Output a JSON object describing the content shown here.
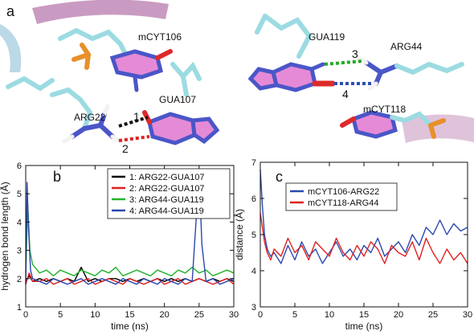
{
  "panel_labels": {
    "a": "a",
    "b": "b",
    "c": "c"
  },
  "structures": {
    "left": {
      "labels": {
        "mcyt106": "mCYT106",
        "gua107": "GUA107",
        "arg22": "ARG22"
      },
      "bonds": [
        {
          "num": "1",
          "color": "#111111"
        },
        {
          "num": "2",
          "color": "#dd2222"
        }
      ]
    },
    "right": {
      "labels": {
        "gua119": "GUA119",
        "arg44": "ARG44",
        "mcyt118": "mCYT118"
      },
      "bonds": [
        {
          "num": "3",
          "color": "#22aa22"
        },
        {
          "num": "4",
          "color": "#2a4fb0"
        }
      ]
    },
    "colors": {
      "carbon": "#8fd4dc",
      "nitrogen": "#4a56c8",
      "oxygen": "#dd2a2a",
      "hydrogen": "#f2f2f2",
      "phosphorus": "#e8902a",
      "ring": "#e58ad6",
      "backbone": "#b06aa8"
    }
  },
  "chart_data": [
    {
      "type": "line",
      "panel": "b",
      "xlabel": "time (ns)",
      "ylabel": "hydrogen bond length (Å)",
      "xlim": [
        0,
        30
      ],
      "ylim": [
        1,
        6
      ],
      "xticks": [
        0,
        5,
        10,
        15,
        20,
        25,
        30
      ],
      "yticks": [
        1,
        2,
        3,
        4,
        5,
        6
      ],
      "legend_position": "top-right",
      "series": [
        {
          "name": "1: ARG22-GUA107",
          "color": "#000000",
          "x": [
            0,
            0.5,
            1,
            2,
            3,
            4,
            5,
            6,
            7,
            8,
            9,
            10,
            11,
            12,
            13,
            14,
            15,
            16,
            17,
            18,
            19,
            20,
            21,
            22,
            23,
            24,
            25,
            26,
            27,
            28,
            29,
            30
          ],
          "y": [
            1.9,
            2.1,
            1.9,
            2.0,
            1.9,
            2.0,
            1.9,
            2.0,
            1.9,
            2.4,
            1.9,
            2.0,
            1.9,
            2.0,
            2.0,
            1.9,
            2.0,
            1.9,
            2.0,
            1.9,
            2.0,
            1.9,
            2.0,
            1.9,
            2.0,
            1.9,
            2.0,
            1.9,
            2.0,
            1.9,
            2.0,
            1.9
          ]
        },
        {
          "name": "2: ARG22-GUA107",
          "color": "#e02020",
          "x": [
            0,
            0.5,
            1,
            2,
            3,
            4,
            5,
            6,
            7,
            8,
            9,
            10,
            11,
            12,
            13,
            14,
            15,
            16,
            17,
            18,
            19,
            20,
            21,
            22,
            23,
            24,
            25,
            26,
            27,
            28,
            29,
            30
          ],
          "y": [
            1.8,
            2.2,
            1.9,
            1.9,
            2.0,
            1.8,
            1.9,
            2.0,
            1.8,
            1.9,
            2.0,
            1.8,
            1.9,
            2.0,
            1.9,
            1.8,
            2.0,
            1.9,
            1.8,
            1.9,
            2.0,
            1.8,
            1.9,
            2.0,
            1.8,
            1.9,
            2.0,
            1.9,
            1.8,
            1.9,
            2.0,
            1.8
          ]
        },
        {
          "name": "3: ARG44-GUA119",
          "color": "#22b22a",
          "x": [
            0,
            0.3,
            0.6,
            1,
            2,
            3,
            4,
            5,
            6,
            7,
            8,
            9,
            10,
            11,
            12,
            13,
            14,
            15,
            16,
            17,
            18,
            19,
            20,
            21,
            22,
            23,
            24,
            25,
            26,
            27,
            28,
            29,
            30
          ],
          "y": [
            2.2,
            4.6,
            3.0,
            2.5,
            2.2,
            2.3,
            2.1,
            2.3,
            2.2,
            2.1,
            2.3,
            2.2,
            2.1,
            2.3,
            2.2,
            2.4,
            2.1,
            2.2,
            2.3,
            2.2,
            2.1,
            2.3,
            2.2,
            2.1,
            2.3,
            2.2,
            2.4,
            2.2,
            2.3,
            2.1,
            2.2,
            2.3,
            2.2
          ]
        },
        {
          "name": "4: ARG44-GUA119",
          "color": "#2a48b0",
          "x": [
            0,
            0.2,
            0.4,
            0.7,
            1,
            2,
            3,
            4,
            5,
            6,
            7,
            8,
            9,
            10,
            11,
            12,
            13,
            14,
            15,
            16,
            17,
            18,
            19,
            20,
            21,
            22,
            23,
            24,
            24.6,
            25.0,
            25.4,
            26,
            27,
            28,
            29,
            30
          ],
          "y": [
            1.8,
            5.4,
            3.8,
            2.3,
            2.0,
            1.9,
            1.8,
            2.0,
            1.9,
            1.8,
            1.9,
            2.0,
            1.8,
            1.9,
            2.0,
            1.9,
            1.8,
            2.0,
            1.9,
            1.8,
            2.0,
            1.9,
            1.8,
            2.0,
            1.9,
            1.8,
            2.0,
            1.9,
            4.2,
            5.8,
            3.2,
            1.9,
            2.0,
            1.8,
            1.9,
            2.0
          ]
        }
      ]
    },
    {
      "type": "line",
      "panel": "c",
      "xlabel": "time (ns)",
      "ylabel": "distance (Å)",
      "xlim": [
        0,
        30
      ],
      "ylim": [
        3,
        7
      ],
      "xticks": [
        0,
        5,
        10,
        15,
        20,
        25,
        30
      ],
      "yticks": [
        3,
        4,
        5,
        6,
        7
      ],
      "legend_position": "top-left",
      "series": [
        {
          "name": "mCYT106-ARG22",
          "color": "#2a48b0",
          "x": [
            0,
            0.3,
            0.6,
            1,
            1.5,
            2,
            3,
            4,
            5,
            6,
            7,
            8,
            9,
            10,
            11,
            12,
            13,
            14,
            15,
            16,
            17,
            18,
            19,
            20,
            21,
            22,
            23,
            24,
            25,
            26,
            27,
            28,
            29,
            30
          ],
          "y": [
            6.8,
            5.8,
            5.0,
            4.6,
            4.4,
            4.5,
            4.2,
            4.7,
            4.3,
            4.8,
            4.4,
            4.6,
            4.2,
            4.5,
            4.8,
            4.4,
            4.6,
            4.3,
            4.7,
            4.5,
            4.9,
            4.4,
            4.6,
            4.8,
            4.5,
            5.0,
            4.7,
            5.2,
            5.0,
            5.4,
            5.0,
            5.3,
            5.1,
            5.2
          ]
        },
        {
          "name": "mCYT118-ARG44",
          "color": "#e02020",
          "x": [
            0,
            0.3,
            0.6,
            1,
            1.5,
            2,
            3,
            4,
            5,
            6,
            7,
            8,
            9,
            10,
            11,
            12,
            13,
            14,
            15,
            16,
            17,
            18,
            19,
            20,
            21,
            22,
            23,
            24,
            25,
            26,
            27,
            28,
            29,
            30
          ],
          "y": [
            5.6,
            5.2,
            4.8,
            4.5,
            4.3,
            4.6,
            4.4,
            4.9,
            4.5,
            4.7,
            4.3,
            4.8,
            4.6,
            4.4,
            4.9,
            4.5,
            4.3,
            4.7,
            4.4,
            4.8,
            4.6,
            4.2,
            4.7,
            4.5,
            4.4,
            4.8,
            4.3,
            4.9,
            4.5,
            4.2,
            4.6,
            4.3,
            4.5,
            4.2
          ]
        }
      ]
    }
  ]
}
